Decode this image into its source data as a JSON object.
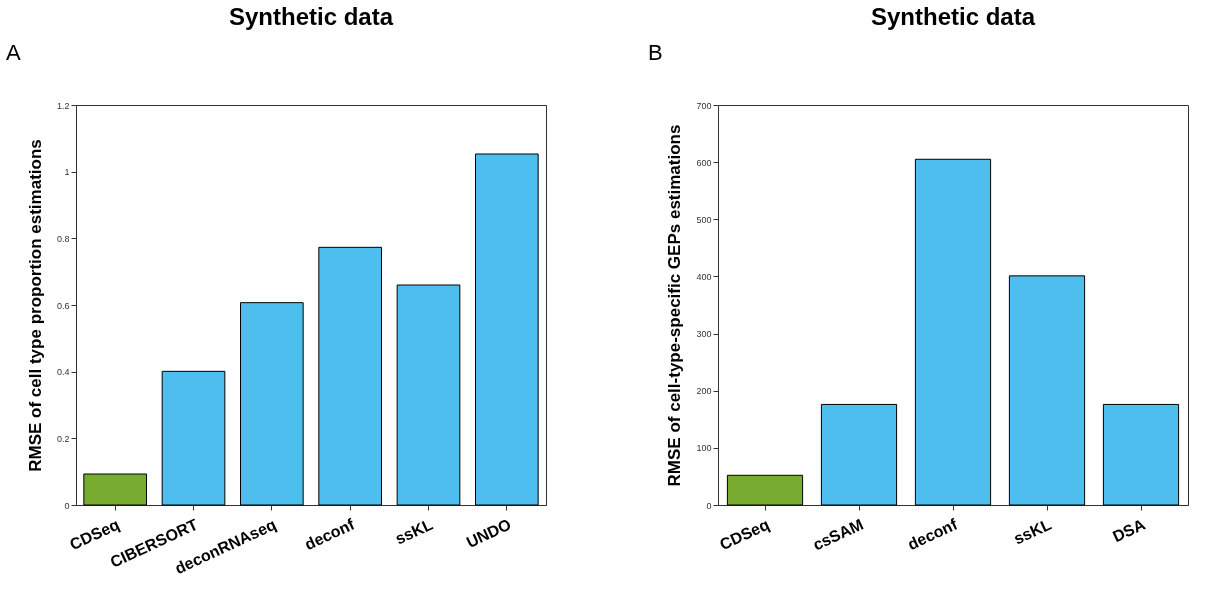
{
  "chart_data": [
    {
      "type": "bar",
      "title": "Synthetic data",
      "ylabel": "RMSE of cell type proportion estimations",
      "categories": [
        "CDSeq",
        "CIBERSORT",
        "deconRNAseq",
        "deconf",
        "ssKL",
        "UNDO"
      ],
      "values": [
        0.093,
        0.401,
        0.607,
        0.773,
        0.66,
        1.053
      ],
      "colors": [
        "#77ac30",
        "#4dbeee",
        "#4dbeee",
        "#4dbeee",
        "#4dbeee",
        "#4dbeee"
      ],
      "ylim": [
        0,
        1.2
      ],
      "yticks": [
        0,
        0.2,
        0.4,
        0.6,
        0.8,
        {
          "value": 1,
          "label": "1"
        },
        1.2
      ],
      "grid": false,
      "annotations": [
        "A"
      ]
    },
    {
      "type": "bar",
      "title": "Synthetic data",
      "ylabel": "RMSE of cell-type-specific GEPs estimations",
      "categories": [
        "CDSeq",
        "csSAM",
        "deconf",
        "ssKL",
        "DSA"
      ],
      "values": [
        52,
        176,
        605,
        401,
        176
      ],
      "colors": [
        "#77ac30",
        "#4dbeee",
        "#4dbeee",
        "#4dbeee",
        "#4dbeee"
      ],
      "ylim": [
        0,
        700
      ],
      "yticks": [
        0,
        100,
        200,
        300,
        400,
        500,
        600,
        700
      ],
      "grid": false,
      "annotations": [
        "B"
      ]
    }
  ]
}
